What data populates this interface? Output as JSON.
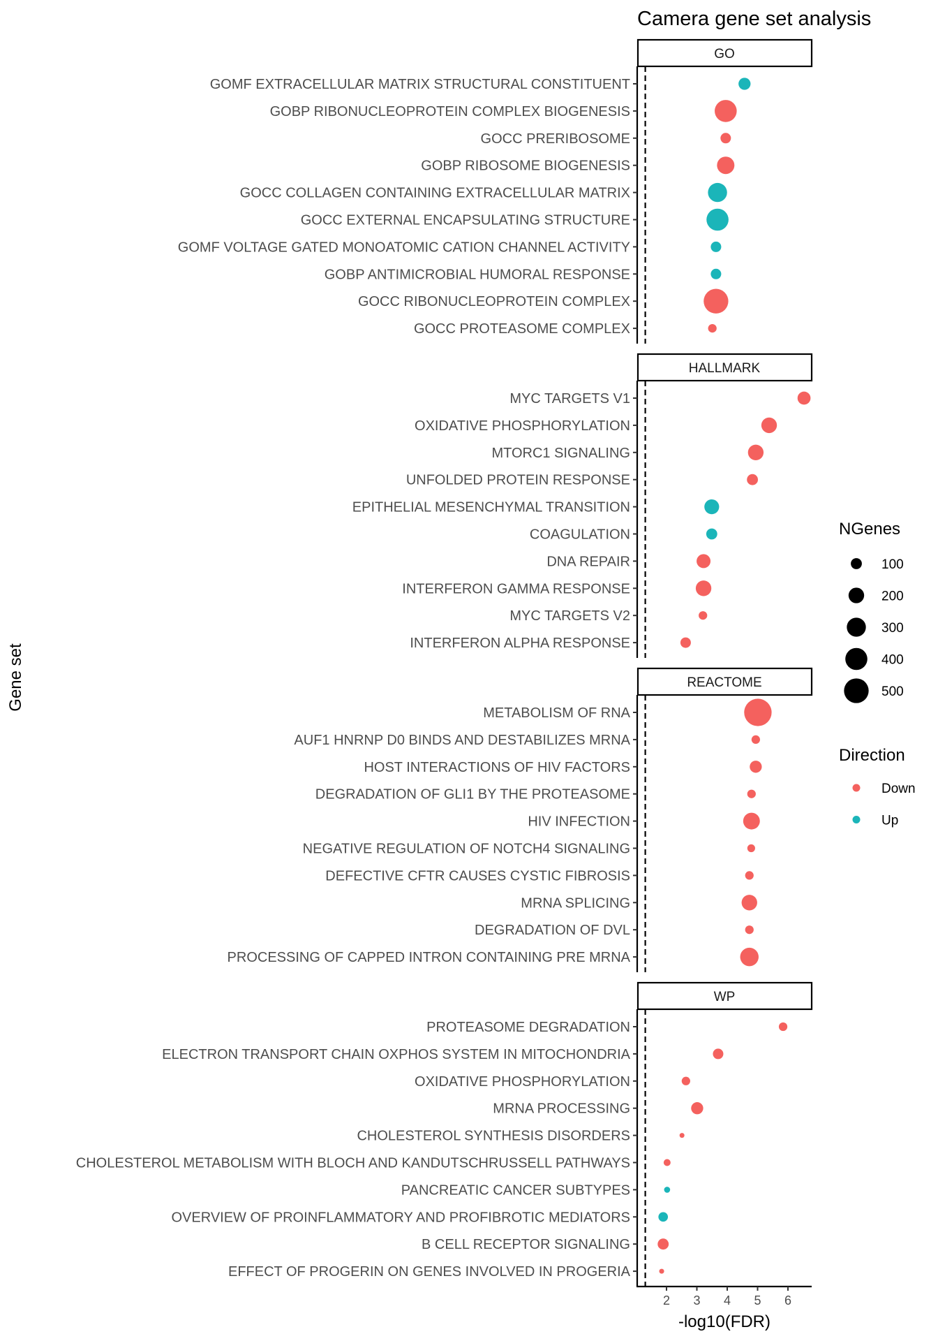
{
  "chart_data": {
    "type": "scatter",
    "title": "Camera gene set analysis",
    "xlabel": "-log10(FDR)",
    "ylabel": "Gene set",
    "xlim": [
      1.0,
      6.85
    ],
    "xticks": [
      2,
      3,
      4,
      5,
      6
    ],
    "threshold_line": {
      "x": 1.301,
      "style": "dashed",
      "meaning": "FDR = 0.05"
    },
    "grid": false,
    "colors": {
      "Down": "#F4615E",
      "Up": "#1BB5B9"
    },
    "facets": [
      {
        "name": "GO",
        "gene_sets": [
          {
            "label": "GOMF EXTRACELLULAR MATRIX STRUCTURAL CONSTITUENT",
            "x": 4.57,
            "ngenes": 120,
            "direction": "Up"
          },
          {
            "label": "GOBP RIBONUCLEOPROTEIN COMPLEX BIOGENESIS",
            "x": 3.95,
            "ngenes": 400,
            "direction": "Down"
          },
          {
            "label": "GOCC PRERIBOSOME",
            "x": 3.95,
            "ngenes": 90,
            "direction": "Down"
          },
          {
            "label": "GOBP RIBOSOME BIOGENESIS",
            "x": 3.95,
            "ngenes": 250,
            "direction": "Down"
          },
          {
            "label": "GOCC COLLAGEN CONTAINING EXTRACELLULAR MATRIX",
            "x": 3.68,
            "ngenes": 300,
            "direction": "Up"
          },
          {
            "label": "GOCC EXTERNAL ENCAPSULATING STRUCTURE",
            "x": 3.68,
            "ngenes": 400,
            "direction": "Up"
          },
          {
            "label": "GOMF VOLTAGE GATED MONOATOMIC CATION CHANNEL ACTIVITY",
            "x": 3.63,
            "ngenes": 90,
            "direction": "Up"
          },
          {
            "label": "GOBP ANTIMICROBIAL HUMORAL RESPONSE",
            "x": 3.63,
            "ngenes": 90,
            "direction": "Up"
          },
          {
            "label": "GOCC RIBONUCLEOPROTEIN COMPLEX",
            "x": 3.63,
            "ngenes": 500,
            "direction": "Down"
          },
          {
            "label": "GOCC PROTEASOME COMPLEX",
            "x": 3.51,
            "ngenes": 60,
            "direction": "Down"
          }
        ]
      },
      {
        "name": "HALLMARK",
        "gene_sets": [
          {
            "label": "MYC TARGETS V1",
            "x": 6.53,
            "ngenes": 140,
            "direction": "Down"
          },
          {
            "label": "OXIDATIVE PHOSPHORYLATION",
            "x": 5.38,
            "ngenes": 200,
            "direction": "Down"
          },
          {
            "label": "MTORC1 SIGNALING",
            "x": 4.94,
            "ngenes": 200,
            "direction": "Down"
          },
          {
            "label": "UNFOLDED PROTEIN RESPONSE",
            "x": 4.83,
            "ngenes": 100,
            "direction": "Down"
          },
          {
            "label": "EPITHELIAL MESENCHYMAL TRANSITION",
            "x": 3.49,
            "ngenes": 180,
            "direction": "Up"
          },
          {
            "label": "COAGULATION",
            "x": 3.49,
            "ngenes": 100,
            "direction": "Up"
          },
          {
            "label": "DNA REPAIR",
            "x": 3.22,
            "ngenes": 160,
            "direction": "Down"
          },
          {
            "label": "INTERFERON GAMMA RESPONSE",
            "x": 3.22,
            "ngenes": 200,
            "direction": "Down"
          },
          {
            "label": "MYC TARGETS V2",
            "x": 3.2,
            "ngenes": 60,
            "direction": "Down"
          },
          {
            "label": "INTERFERON ALPHA RESPONSE",
            "x": 2.63,
            "ngenes": 90,
            "direction": "Down"
          }
        ]
      },
      {
        "name": "REACTOME",
        "gene_sets": [
          {
            "label": "METABOLISM OF RNA",
            "x": 5.01,
            "ngenes": 620,
            "direction": "Down"
          },
          {
            "label": "AUF1 HNRNP D0 BINDS AND DESTABILIZES MRNA",
            "x": 4.94,
            "ngenes": 60,
            "direction": "Down"
          },
          {
            "label": "HOST INTERACTIONS OF HIV FACTORS",
            "x": 4.94,
            "ngenes": 120,
            "direction": "Down"
          },
          {
            "label": "DEGRADATION OF GLI1 BY THE PROTEASOME",
            "x": 4.8,
            "ngenes": 60,
            "direction": "Down"
          },
          {
            "label": "HIV INFECTION",
            "x": 4.8,
            "ngenes": 230,
            "direction": "Down"
          },
          {
            "label": "NEGATIVE REGULATION OF NOTCH4 SIGNALING",
            "x": 4.79,
            "ngenes": 50,
            "direction": "Down"
          },
          {
            "label": "DEFECTIVE CFTR CAUSES CYSTIC FIBROSIS",
            "x": 4.73,
            "ngenes": 60,
            "direction": "Down"
          },
          {
            "label": "MRNA SPLICING",
            "x": 4.73,
            "ngenes": 200,
            "direction": "Down"
          },
          {
            "label": "DEGRADATION OF DVL",
            "x": 4.73,
            "ngenes": 60,
            "direction": "Down"
          },
          {
            "label": "PROCESSING OF CAPPED INTRON CONTAINING PRE MRNA",
            "x": 4.73,
            "ngenes": 280,
            "direction": "Down"
          }
        ]
      },
      {
        "name": "WP",
        "gene_sets": [
          {
            "label": "PROTEASOME DEGRADATION",
            "x": 5.84,
            "ngenes": 60,
            "direction": "Down"
          },
          {
            "label": "ELECTRON TRANSPORT CHAIN OXPHOS SYSTEM IN MITOCHONDRIA",
            "x": 3.7,
            "ngenes": 90,
            "direction": "Down"
          },
          {
            "label": "OXIDATIVE PHOSPHORYLATION",
            "x": 2.64,
            "ngenes": 60,
            "direction": "Down"
          },
          {
            "label": "MRNA PROCESSING",
            "x": 3.01,
            "ngenes": 120,
            "direction": "Down"
          },
          {
            "label": "CHOLESTEROL SYNTHESIS DISORDERS",
            "x": 2.51,
            "ngenes": 10,
            "direction": "Down"
          },
          {
            "label": "CHOLESTEROL METABOLISM WITH BLOCH AND KANDUTSCHRUSSELL PATHWAYS",
            "x": 2.02,
            "ngenes": 40,
            "direction": "Down"
          },
          {
            "label": "PANCREATIC CANCER SUBTYPES",
            "x": 2.02,
            "ngenes": 30,
            "direction": "Up"
          },
          {
            "label": "OVERVIEW OF PROINFLAMMATORY AND PROFIBROTIC MEDIATORS",
            "x": 1.89,
            "ngenes": 75,
            "direction": "Up"
          },
          {
            "label": "B CELL RECEPTOR SIGNALING",
            "x": 1.89,
            "ngenes": 100,
            "direction": "Down"
          },
          {
            "label": "EFFECT OF PROGERIN ON GENES INVOLVED IN PROGERIA",
            "x": 1.84,
            "ngenes": 20,
            "direction": "Down"
          }
        ]
      }
    ],
    "legend": {
      "placement": "right",
      "size": {
        "title": "NGenes",
        "breaks": [
          100,
          200,
          300,
          400,
          500
        ]
      },
      "color": {
        "title": "Direction",
        "entries": [
          "Down",
          "Up"
        ]
      }
    }
  }
}
